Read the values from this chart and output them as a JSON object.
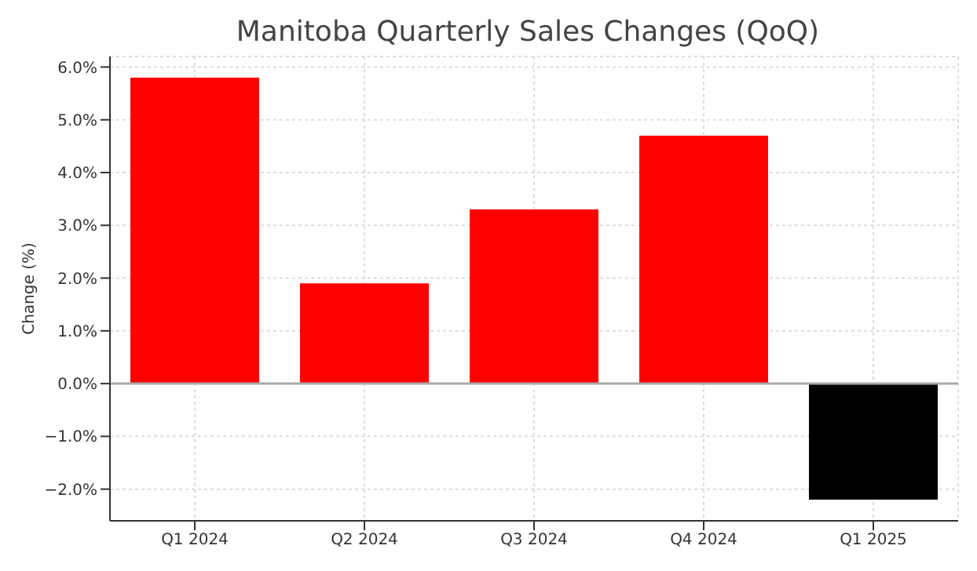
{
  "chart_data": {
    "type": "bar",
    "title": "Manitoba Quarterly Sales Changes (QoQ)",
    "ylabel": "Change (%)",
    "categories": [
      "Q1 2024",
      "Q2 2024",
      "Q3 2024",
      "Q4 2024",
      "Q1 2025"
    ],
    "values": [
      5.8,
      1.9,
      3.3,
      4.7,
      -2.2
    ],
    "colors": [
      "#ff0000",
      "#ff0000",
      "#ff0000",
      "#ff0000",
      "#000000"
    ],
    "ylim": [
      -2.6,
      6.2
    ],
    "yticks": [
      {
        "value": -2,
        "label": "−2.0%"
      },
      {
        "value": -1,
        "label": "−1.0%"
      },
      {
        "value": 0,
        "label": "0.0%"
      },
      {
        "value": 1,
        "label": "1.0%"
      },
      {
        "value": 2,
        "label": "2.0%"
      },
      {
        "value": 3,
        "label": "3.0%"
      },
      {
        "value": 4,
        "label": "4.0%"
      },
      {
        "value": 5,
        "label": "5.0%"
      },
      {
        "value": 6,
        "label": "6.0%"
      }
    ],
    "ref_lines": [
      {
        "axis": "y",
        "value": 0,
        "color": "#aaaaaa"
      }
    ],
    "grid": true
  }
}
